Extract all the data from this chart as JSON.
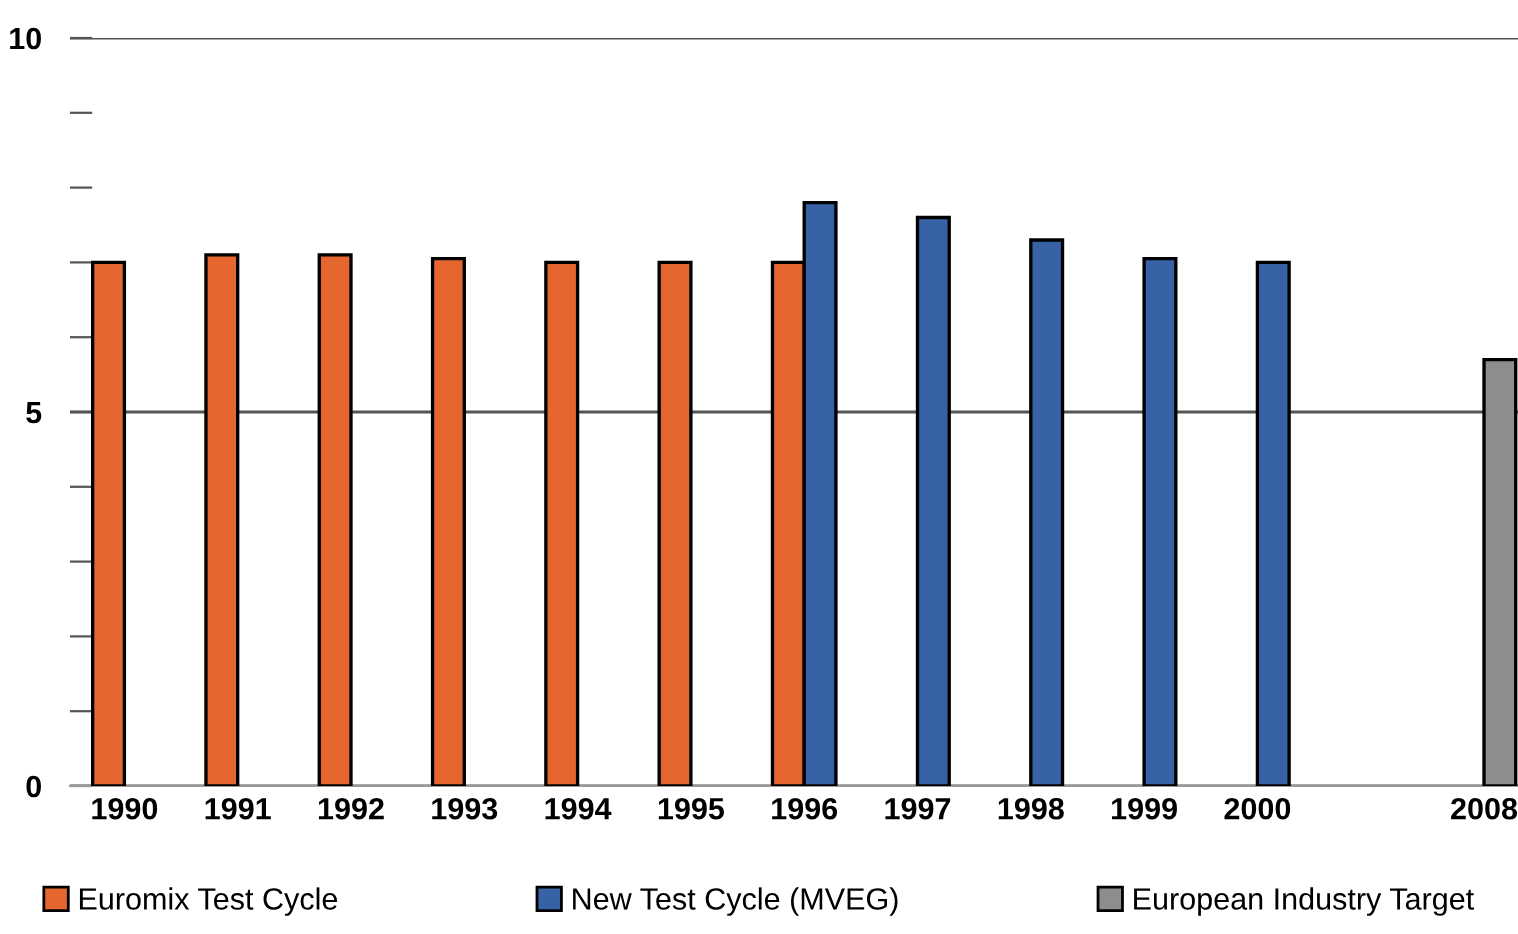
{
  "chart_data": {
    "type": "bar",
    "categories": [
      "1990",
      "1991",
      "1992",
      "1993",
      "1994",
      "1995",
      "1996",
      "1997",
      "1998",
      "1999",
      "2000",
      null,
      "2008"
    ],
    "series": [
      {
        "name": "Euromix Test Cycle",
        "color": "#e5672f",
        "values": [
          7.0,
          7.1,
          7.1,
          7.05,
          7.0,
          7.0,
          7.0,
          null,
          null,
          null,
          null,
          null,
          null
        ]
      },
      {
        "name": "New Test Cycle (MVEG)",
        "color": "#3862a6",
        "values": [
          null,
          null,
          null,
          null,
          null,
          null,
          7.8,
          7.6,
          7.3,
          7.05,
          7.0,
          null,
          null
        ]
      },
      {
        "name": "European Industry Target",
        "color": "#8c8d8f",
        "values": [
          null,
          null,
          null,
          null,
          null,
          null,
          null,
          null,
          null,
          null,
          null,
          null,
          5.7
        ]
      }
    ],
    "ylim": [
      0,
      10
    ],
    "yticks": [
      0,
      {
        "value": 1,
        "label": null
      },
      {
        "value": 2,
        "label": null
      },
      {
        "value": 3,
        "label": null
      },
      {
        "value": 4,
        "label": null
      },
      5,
      {
        "value": 6,
        "label": null
      },
      {
        "value": 7,
        "label": null
      },
      {
        "value": 8,
        "label": null
      },
      {
        "value": 9,
        "label": null
      },
      10
    ],
    "grid": "y",
    "legend": "bottom"
  }
}
